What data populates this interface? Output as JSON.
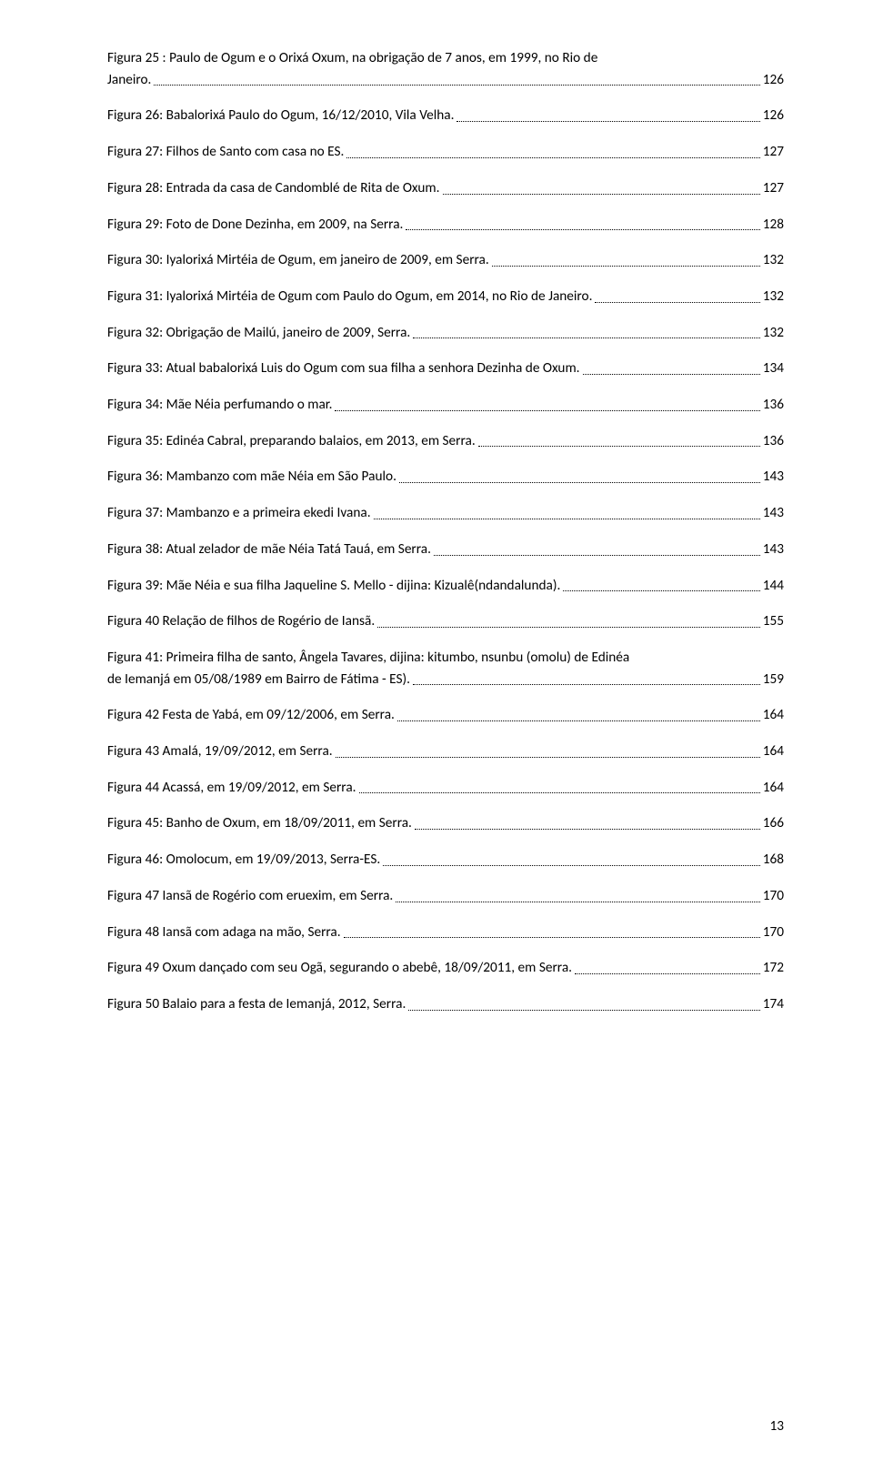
{
  "text_color": "#000000",
  "background_color": "#ffffff",
  "font_family": "Calibri, 'Segoe UI', Arial, sans-serif",
  "font_size_pt": 11.5,
  "line_spacing": 1.55,
  "dot_leader_color": "#000000",
  "entries": [
    {
      "line1": "Figura 25 : Paulo de Ogum e o Orixá Oxum, na obrigação de 7 anos, em 1999, no Rio de",
      "line2": "Janeiro.",
      "page": "126"
    },
    {
      "label": "Figura 26: Babalorixá Paulo do Ogum, 16/12/2010, Vila Velha.",
      "page": "126"
    },
    {
      "label": "Figura 27: Filhos de Santo com casa no ES.",
      "page": "127"
    },
    {
      "label": "Figura 28: Entrada da casa de Candomblé de Rita de Oxum.",
      "page": "127"
    },
    {
      "label": "Figura 29: Foto de Done Dezinha, em 2009, na Serra.",
      "page": "128"
    },
    {
      "label": "Figura 30: Iyalorixá Mirtéia de Ogum, em janeiro de 2009, em Serra.",
      "page": "132"
    },
    {
      "label": "Figura 31: Iyalorixá Mirtéia de Ogum com Paulo do Ogum, em 2014, no Rio de Janeiro.",
      "page": "132"
    },
    {
      "label": "Figura 32: Obrigação de Mailú, janeiro de 2009, Serra.",
      "page": "132"
    },
    {
      "label": "Figura 33: Atual babalorixá Luis do Ogum com sua filha a senhora Dezinha de Oxum.",
      "page": "134"
    },
    {
      "label": "Figura 34: Mãe Néia perfumando o mar.",
      "page": "136"
    },
    {
      "label": "Figura 35: Edinéa Cabral, preparando balaios, em 2013, em Serra.",
      "page": "136"
    },
    {
      "label": "Figura 36: Mambanzo com mãe Néia em São Paulo.",
      "page": "143"
    },
    {
      "label": "Figura 37: Mambanzo e a primeira ekedi Ivana.",
      "page": "143"
    },
    {
      "label": "Figura 38: Atual zelador de mãe Néia Tatá Tauá, em Serra.",
      "page": "143"
    },
    {
      "label": "Figura 39: Mãe Néia e sua filha Jaqueline S. Mello - dijina: Kizualê(ndandalunda).",
      "page": "144"
    },
    {
      "label": "Figura 40 Relação de filhos de Rogério de Iansã.",
      "page": "155"
    },
    {
      "line1": "Figura 41: Primeira filha de santo, Ângela Tavares, dijina: kitumbo, nsunbu (omolu) de Edinéa",
      "line2": "de Iemanjá em 05/08/1989 em Bairro de Fátima - ES).",
      "page": "159"
    },
    {
      "label": "Figura 42 Festa de Yabá, em 09/12/2006, em Serra.",
      "page": "164"
    },
    {
      "label": "Figura 43 Amalá, 19/09/2012, em Serra.",
      "page": "164"
    },
    {
      "label": "Figura 44 Acassá, em 19/09/2012, em Serra.",
      "page": "164"
    },
    {
      "label": "Figura 45: Banho de Oxum, em 18/09/2011, em Serra.",
      "page": "166"
    },
    {
      "label": "Figura 46: Omolocum, em 19/09/2013, Serra-ES.",
      "page": "168"
    },
    {
      "label": "Figura 47 Iansã de Rogério com eruexim, em Serra.",
      "page": "170"
    },
    {
      "label": "Figura 48 Iansã com adaga na mão, Serra.",
      "page": "170"
    },
    {
      "label": "Figura 49 Oxum dançado com seu Ogã, segurando o abebê, 18/09/2011, em Serra.",
      "page": "172"
    },
    {
      "label": "Figura 50 Balaio para a festa de Iemanjá, 2012, Serra.",
      "page": "174"
    }
  ],
  "footer_page_number": "13"
}
